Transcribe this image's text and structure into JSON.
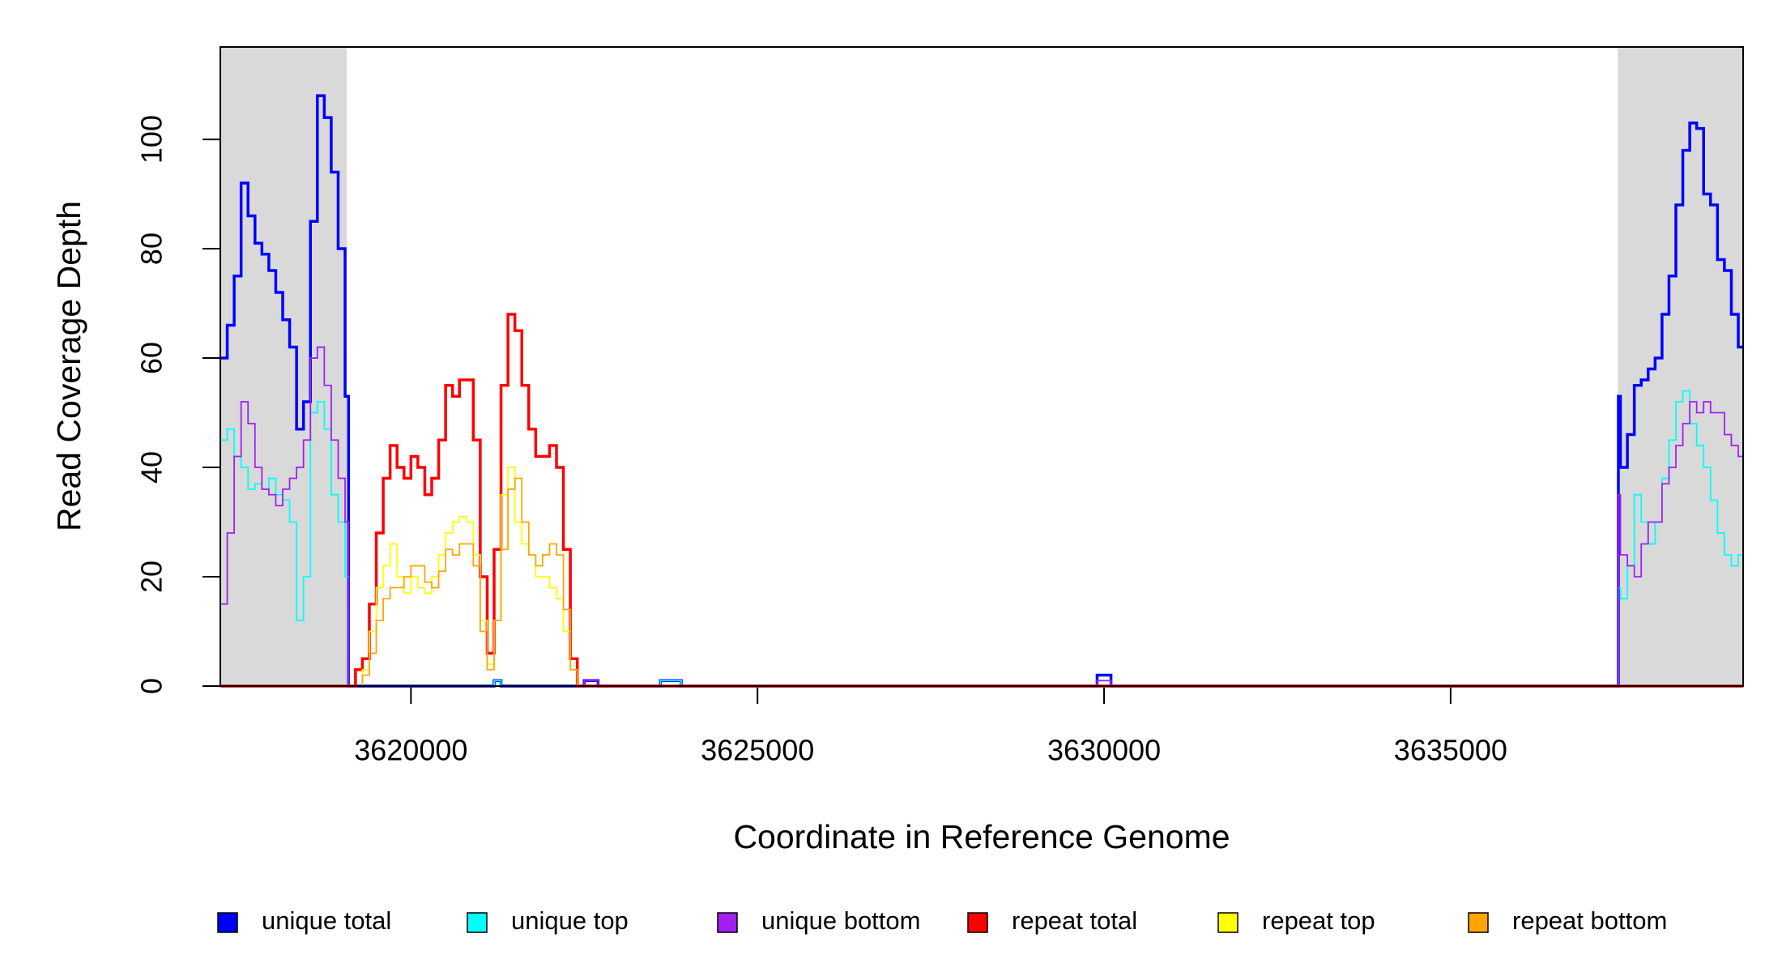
{
  "chart_data": {
    "type": "step",
    "xlabel": "Coordinate in Reference Genome",
    "ylabel": "Read Coverage Depth",
    "x": [
      3617250,
      3617350,
      3617450,
      3617550,
      3617650,
      3617750,
      3617850,
      3617950,
      3618050,
      3618150,
      3618250,
      3618350,
      3618450,
      3618550,
      3618650,
      3618750,
      3618850,
      3618950,
      3619050,
      3619100,
      3619200,
      3619300,
      3619400,
      3619500,
      3619600,
      3619700,
      3619800,
      3619900,
      3620000,
      3620100,
      3620200,
      3620300,
      3620400,
      3620500,
      3620600,
      3620700,
      3620800,
      3620900,
      3621000,
      3621100,
      3621200,
      3621300,
      3621400,
      3621500,
      3621600,
      3621700,
      3621800,
      3621900,
      3622000,
      3622100,
      3622200,
      3622300,
      3622400,
      3622500,
      3622700,
      3623600,
      3623900,
      3629900,
      3630100,
      3637420,
      3637450,
      3637550,
      3637650,
      3637750,
      3637850,
      3637950,
      3638050,
      3638150,
      3638250,
      3638350,
      3638450,
      3638550,
      3638650,
      3638750,
      3638850,
      3638950,
      3639050,
      3639150
    ],
    "series": [
      {
        "name": "unique total",
        "color": "#0000ff",
        "values": [
          60,
          66,
          75,
          92,
          86,
          81,
          79,
          76,
          72,
          67,
          62,
          47,
          52,
          85,
          108,
          104,
          94,
          80,
          53,
          0,
          0,
          0,
          0,
          0,
          0,
          0,
          0,
          0,
          0,
          0,
          0,
          0,
          0,
          0,
          0,
          0,
          0,
          0,
          0,
          0,
          1,
          0,
          0,
          0,
          0,
          0,
          0,
          0,
          0,
          0,
          0,
          0,
          0,
          1,
          0,
          1,
          0,
          2,
          0,
          53,
          40,
          46,
          55,
          56,
          58,
          60,
          68,
          75,
          88,
          98,
          103,
          102,
          90,
          88,
          78,
          76,
          68,
          62
        ]
      },
      {
        "name": "unique top",
        "color": "#00ffff",
        "values": [
          45,
          47,
          42,
          40,
          36,
          37,
          36,
          38,
          35,
          34,
          30,
          12,
          20,
          50,
          52,
          47,
          35,
          30,
          20,
          0,
          0,
          0,
          0,
          0,
          0,
          0,
          0,
          0,
          0,
          0,
          0,
          0,
          0,
          0,
          0,
          0,
          0,
          0,
          0,
          0,
          1,
          0,
          0,
          0,
          0,
          0,
          0,
          0,
          0,
          0,
          0,
          0,
          0,
          0,
          0,
          1,
          0,
          1,
          0,
          18,
          16,
          22,
          35,
          30,
          26,
          30,
          38,
          45,
          52,
          54,
          48,
          44,
          40,
          34,
          28,
          24,
          22,
          24
        ]
      },
      {
        "name": "unique bottom",
        "color": "#a020f0",
        "values": [
          15,
          28,
          42,
          52,
          48,
          40,
          36,
          35,
          33,
          36,
          38,
          40,
          45,
          60,
          62,
          55,
          45,
          38,
          30,
          0,
          0,
          0,
          0,
          0,
          0,
          0,
          0,
          0,
          0,
          0,
          0,
          0,
          0,
          0,
          0,
          0,
          0,
          0,
          0,
          0,
          0,
          0,
          0,
          0,
          0,
          0,
          0,
          0,
          0,
          0,
          0,
          0,
          0,
          1,
          0,
          0,
          0,
          1,
          0,
          35,
          24,
          22,
          20,
          26,
          30,
          30,
          37,
          40,
          44,
          48,
          52,
          50,
          52,
          50,
          50,
          46,
          44,
          42
        ]
      },
      {
        "name": "repeat total",
        "color": "#ff0000",
        "values": [
          0,
          0,
          0,
          0,
          0,
          0,
          0,
          0,
          0,
          0,
          0,
          0,
          0,
          0,
          0,
          0,
          0,
          0,
          0,
          0,
          3,
          5,
          15,
          28,
          38,
          44,
          40,
          38,
          42,
          40,
          35,
          38,
          45,
          55,
          53,
          56,
          56,
          45,
          20,
          6,
          25,
          55,
          68,
          65,
          55,
          47,
          42,
          42,
          44,
          40,
          25,
          5,
          0,
          0,
          0,
          0,
          0,
          0,
          0,
          0,
          0,
          0,
          0,
          0,
          0,
          0,
          0,
          0,
          0,
          0,
          0,
          0,
          0,
          0,
          0,
          0,
          0,
          0
        ]
      },
      {
        "name": "repeat top",
        "color": "#ffff00",
        "values": [
          0,
          0,
          0,
          0,
          0,
          0,
          0,
          0,
          0,
          0,
          0,
          0,
          0,
          0,
          0,
          0,
          0,
          0,
          0,
          0,
          0,
          3,
          10,
          18,
          22,
          26,
          20,
          17,
          20,
          18,
          17,
          20,
          24,
          28,
          30,
          31,
          30,
          24,
          12,
          4,
          12,
          35,
          40,
          30,
          26,
          24,
          20,
          20,
          18,
          16,
          10,
          3,
          0,
          0,
          0,
          0,
          0,
          0,
          0,
          0,
          0,
          0,
          0,
          0,
          0,
          0,
          0,
          0,
          0,
          0,
          0,
          0,
          0,
          0,
          0,
          0,
          0,
          0
        ]
      },
      {
        "name": "repeat bottom",
        "color": "#ffa500",
        "values": [
          0,
          0,
          0,
          0,
          0,
          0,
          0,
          0,
          0,
          0,
          0,
          0,
          0,
          0,
          0,
          0,
          0,
          0,
          0,
          0,
          0,
          2,
          6,
          12,
          16,
          18,
          18,
          20,
          22,
          22,
          19,
          18,
          21,
          25,
          24,
          26,
          26,
          22,
          10,
          3,
          12,
          25,
          36,
          38,
          30,
          24,
          22,
          24,
          26,
          24,
          14,
          3,
          0,
          0,
          0,
          0,
          0,
          0,
          0,
          0,
          0,
          0,
          0,
          0,
          0,
          0,
          0,
          0,
          0,
          0,
          0,
          0,
          0,
          0,
          0,
          0,
          0,
          0
        ]
      }
    ],
    "highlight_ranges": [
      [
        3617250,
        3619076
      ],
      [
        3637410,
        3639220
      ]
    ],
    "highlight_color": "#d9d9d9",
    "xlim": [
      3617250,
      3639220
    ],
    "xticks": [
      3620000,
      3625000,
      3630000,
      3635000
    ],
    "ylim": [
      0,
      116.9
    ],
    "yticks": [
      0,
      20,
      40,
      60,
      80,
      100
    ],
    "legend": "bottom"
  }
}
